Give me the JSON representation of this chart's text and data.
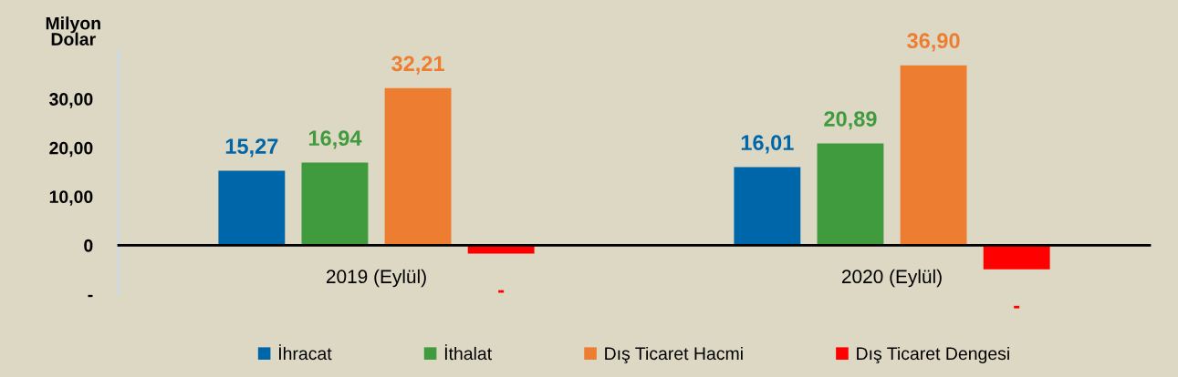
{
  "chart_data": {
    "type": "bar",
    "ylabel": "Milyon\nDolar",
    "categories": [
      "2019 (Eylül)",
      "2020 (Eylül)"
    ],
    "series": [
      {
        "name": "İhracat",
        "color": "#0066aa",
        "values": [
          15.27,
          16.01
        ],
        "value_labels": [
          "15,27",
          "16,01"
        ]
      },
      {
        "name": "İthalat",
        "color": "#409a3e",
        "values": [
          16.94,
          20.89
        ],
        "value_labels": [
          "16,94",
          "20,89"
        ]
      },
      {
        "name": "Dış Ticaret Hacmi",
        "color": "#ed7d31",
        "values": [
          32.21,
          36.9
        ],
        "value_labels": [
          "32,21",
          "36,90"
        ]
      },
      {
        "name": "Dış Ticaret Dengesi",
        "color": "#ff0000",
        "values": [
          -1.7,
          -4.9
        ],
        "value_labels": [
          "-",
          "-"
        ]
      }
    ],
    "ylim": [
      -10,
      40
    ],
    "yticks": [
      {
        "value": 30,
        "label": "30,00"
      },
      {
        "value": 20,
        "label": "20,00"
      },
      {
        "value": 10,
        "label": "10,00"
      },
      0,
      {
        "value": -10,
        "label": "-"
      }
    ],
    "legend": "bottom"
  }
}
